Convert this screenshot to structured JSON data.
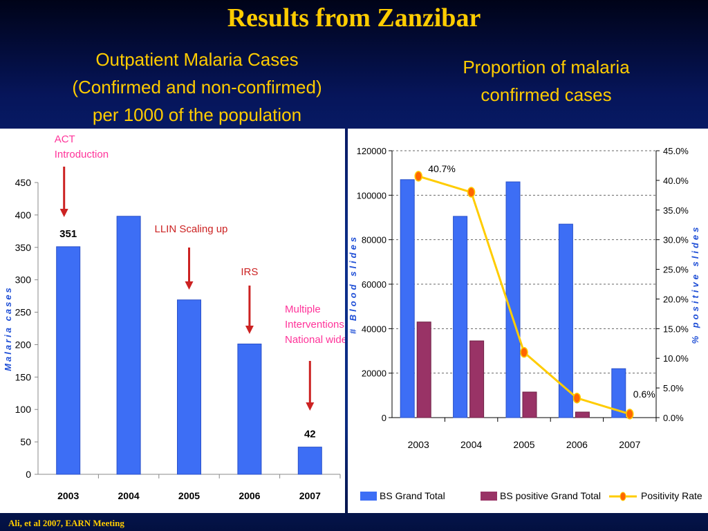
{
  "slide": {
    "title": "Results from Zanzibar",
    "left_heading_lines": [
      "Outpatient Malaria Cases",
      "(Confirmed and non-confirmed)",
      "per 1000 of the population"
    ],
    "right_heading_lines": [
      "Proportion of malaria",
      "confirmed cases"
    ],
    "footer": "Ali, et al 2007, EARN Meeting"
  },
  "colors": {
    "title": "#ffcc00",
    "bar_blue": "#3d6ef5",
    "bar_maroon": "#993366",
    "line_yellow": "#ffcc00",
    "marker_orange": "#ff6600",
    "annotation_red": "#cc2222",
    "annotation_pink": "#ff3399",
    "axis_label_blue": "#1f4fd6"
  },
  "chart_data": [
    {
      "type": "bar",
      "ylabel": "Malaria cases",
      "ylim": [
        0,
        450
      ],
      "yticks": [
        0,
        50,
        100,
        150,
        200,
        250,
        300,
        350,
        400,
        450
      ],
      "categories": [
        "2003",
        "2004",
        "2005",
        "2006",
        "2007"
      ],
      "values": [
        351,
        398,
        269,
        201,
        42
      ],
      "data_labels": [
        {
          "category": "2003",
          "text": "351"
        },
        {
          "category": "2007",
          "text": "42"
        }
      ],
      "annotations": [
        {
          "category": "2003",
          "lines": [
            "ACT",
            "Introduction"
          ]
        },
        {
          "category": "2005",
          "lines": [
            "LLIN Scaling up"
          ]
        },
        {
          "category": "2006",
          "lines": [
            "IRS"
          ]
        },
        {
          "category": "2007",
          "lines": [
            "Multiple",
            "Interventions",
            "National wide"
          ]
        }
      ]
    },
    {
      "type": "bar",
      "categories": [
        "2003",
        "2004",
        "2005",
        "2006",
        "2007"
      ],
      "ylabel": "# Blood slides",
      "y2label": "% positive slides",
      "ylim": [
        0,
        120000
      ],
      "yticks": [
        0,
        20000,
        40000,
        60000,
        80000,
        100000,
        120000
      ],
      "y2lim": [
        0,
        45
      ],
      "y2ticks": [
        "0.0%",
        "5.0%",
        "10.0%",
        "15.0%",
        "20.0%",
        "25.0%",
        "30.0%",
        "35.0%",
        "40.0%",
        "45.0%"
      ],
      "series": [
        {
          "name": "BS Grand Total",
          "type": "bar",
          "values": [
            107000,
            90500,
            106000,
            87000,
            22000
          ]
        },
        {
          "name": "BS positive Grand Total",
          "type": "bar",
          "values": [
            43000,
            34500,
            11500,
            2500,
            0
          ]
        },
        {
          "name": "Positivity Rate",
          "type": "line",
          "axis": "right",
          "values": [
            40.7,
            38.0,
            11.0,
            3.3,
            0.6
          ]
        }
      ],
      "data_labels": [
        {
          "series": "Positivity Rate",
          "category": "2003",
          "text": "40.7%"
        },
        {
          "series": "Positivity Rate",
          "category": "2007",
          "text": "0.6%"
        }
      ],
      "legend": "bottom",
      "grid": true
    }
  ]
}
